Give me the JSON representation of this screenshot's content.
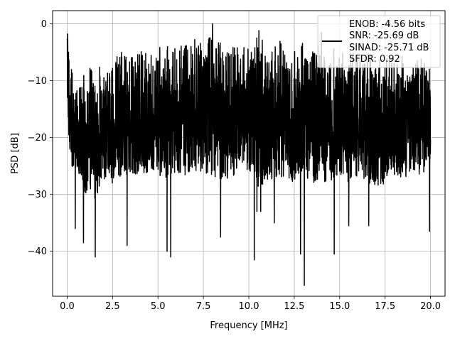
{
  "chart_data": {
    "type": "line",
    "title": "",
    "xlabel": "Frequency [MHz]",
    "ylabel": "PSD [dB]",
    "xlim": [
      -0.8,
      20.8
    ],
    "ylim": [
      -47.9,
      2.3
    ],
    "xticks": [
      0.0,
      2.5,
      5.0,
      7.5,
      10.0,
      12.5,
      15.0,
      17.5,
      20.0
    ],
    "xtick_labels": [
      "0.0",
      "2.5",
      "5.0",
      "7.5",
      "10.0",
      "12.5",
      "15.0",
      "17.5",
      "20.0"
    ],
    "yticks": [
      0,
      -10,
      -20,
      -30,
      -40
    ],
    "ytick_labels": [
      "0",
      "−10",
      "−20",
      "−30",
      "−40"
    ],
    "grid": true,
    "legend_position": "top-right",
    "legend": [
      "ENOB: -4.56 bits",
      "SNR: -25.69 dB",
      "SINAD: -25.71 dB",
      "SFDR: 0.92"
    ],
    "series": [
      {
        "color": "#000000",
        "envelope": {
          "x": [
            0.0,
            0.25,
            0.5,
            1.0,
            1.5,
            2.0,
            2.5,
            3.0,
            3.5,
            4.0,
            4.5,
            5.0,
            5.5,
            6.0,
            6.5,
            7.0,
            7.5,
            8.0,
            8.5,
            9.0,
            9.5,
            10.0,
            10.5,
            11.0,
            11.5,
            12.0,
            12.5,
            13.0,
            13.5,
            14.0,
            14.5,
            15.0,
            15.5,
            16.0,
            16.5,
            17.0,
            17.5,
            18.0,
            18.5,
            19.0,
            19.5,
            20.0
          ],
          "upper": [
            -2.0,
            -8.0,
            -8.5,
            -8.0,
            -7.5,
            -7.0,
            -6.0,
            -5.0,
            -4.5,
            -4.0,
            -5.0,
            -3.0,
            -4.0,
            -4.0,
            -3.0,
            -2.0,
            -4.0,
            -0.5,
            -3.0,
            -3.5,
            -4.0,
            -3.0,
            -1.5,
            -3.5,
            -3.0,
            -3.0,
            -4.0,
            -3.0,
            -5.0,
            -2.0,
            -3.5,
            -4.5,
            -4.0,
            -5.0,
            -5.0,
            -5.5,
            -6.0,
            -6.0,
            -5.5,
            -7.0,
            -6.0,
            -8.0
          ],
          "lower": [
            -18.0,
            -27.0,
            -28.0,
            -32.0,
            -33.0,
            -30.0,
            -30.0,
            -29.0,
            -28.0,
            -29.0,
            -28.0,
            -29.0,
            -29.0,
            -28.0,
            -29.0,
            -28.0,
            -29.0,
            -29.0,
            -30.0,
            -29.0,
            -28.0,
            -28.0,
            -31.0,
            -30.0,
            -29.0,
            -29.0,
            -30.0,
            -29.0,
            -30.0,
            -31.0,
            -30.0,
            -29.0,
            -30.0,
            -29.0,
            -30.0,
            -31.0,
            -30.0,
            -29.0,
            -29.0,
            -28.0,
            -29.0,
            -25.0
          ]
        },
        "dips": [
          {
            "x": 1.55,
            "y": -41.0
          },
          {
            "x": 5.7,
            "y": -41.0
          },
          {
            "x": 5.5,
            "y": -40.0
          },
          {
            "x": 10.3,
            "y": -41.5
          },
          {
            "x": 12.85,
            "y": -40.5
          },
          {
            "x": 13.05,
            "y": -46.0
          },
          {
            "x": 14.7,
            "y": -40.5
          },
          {
            "x": 3.3,
            "y": -39.0
          },
          {
            "x": 0.45,
            "y": -36.0
          },
          {
            "x": 0.9,
            "y": -38.5
          },
          {
            "x": 8.45,
            "y": -37.5
          },
          {
            "x": 10.45,
            "y": -33.0
          },
          {
            "x": 10.65,
            "y": -33.0
          },
          {
            "x": 11.4,
            "y": -35.0
          },
          {
            "x": 15.5,
            "y": -35.5
          },
          {
            "x": 16.6,
            "y": -35.5
          },
          {
            "x": 19.95,
            "y": -36.5
          }
        ],
        "peaks": [
          {
            "x": 0.03,
            "y": -1.8
          },
          {
            "x": 8.0,
            "y": 0.0
          },
          {
            "x": 10.55,
            "y": -1.2
          },
          {
            "x": 14.0,
            "y": -1.5
          }
        ]
      }
    ]
  }
}
